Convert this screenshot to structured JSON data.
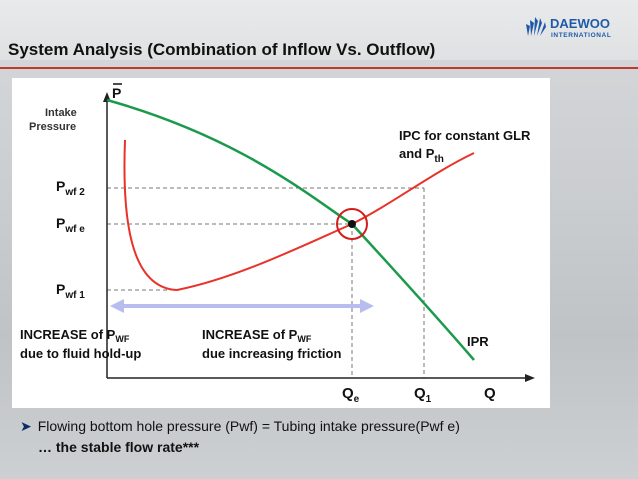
{
  "slide": {
    "title": "System Analysis (Combination of Inflow Vs. Outflow)",
    "logo_text": "DAEWOO",
    "logo_subtext": "INTERNATIONAL"
  },
  "diagram": {
    "y_axis_label_line1": "Intake",
    "y_axis_label_line2": "Pressure",
    "p_bar": "P",
    "pwf2": {
      "base": "P",
      "sub": "wf 2"
    },
    "pwfe": {
      "base": "P",
      "sub": "wf e"
    },
    "pwf1": {
      "base": "P",
      "sub": "wf 1"
    },
    "ipc_label_line1": "IPC for constant GLR",
    "ipc_label_line2_prefix": "and P",
    "ipc_label_line2_sub": "th",
    "ipr_label": "IPR",
    "x_qe": {
      "base": "Q",
      "sub": "e"
    },
    "x_q1": {
      "base": "Q",
      "sub": "1"
    },
    "x_q": "Q",
    "left_note_line1_prefix": "INCREASE of P",
    "left_note_line1_sub": "WF",
    "left_note_line2": "due to fluid hold-up",
    "right_note_line1_prefix": "INCREASE of P",
    "right_note_line1_sub": "WF",
    "right_note_line2": "due increasing friction",
    "colors": {
      "ipr": "#1a9a4a",
      "ipc": "#e8332a",
      "arrow": "#b8bdf0",
      "circle": "#d01e1e"
    }
  },
  "bullets": {
    "line1": "Flowing bottom hole pressure (Pwf) = Tubing intake pressure(Pwf e)",
    "line2": "… the stable flow rate***"
  }
}
